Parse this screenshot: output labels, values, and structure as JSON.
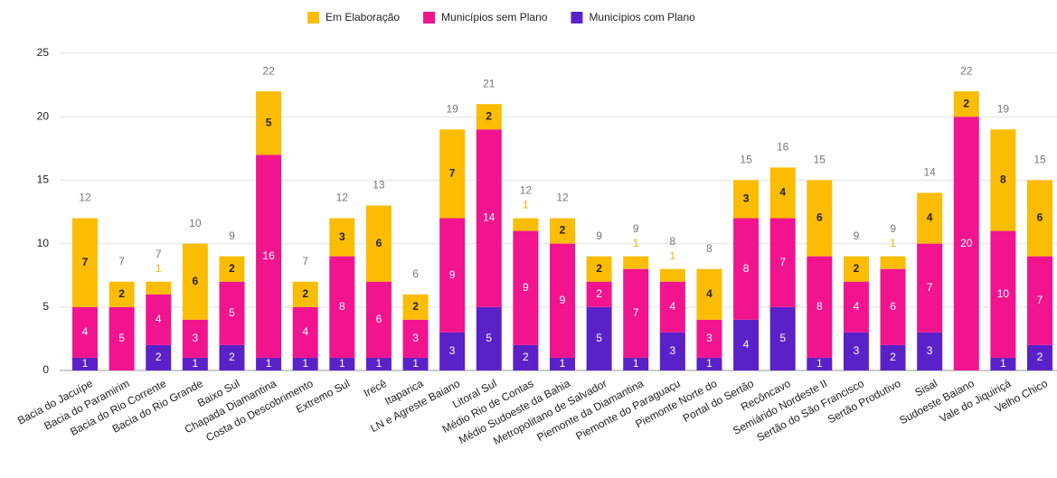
{
  "chart_data": {
    "type": "stacked_bar",
    "categories": [
      "Bacia do Jacuípe",
      "Bacia do Paramirim",
      "Bacia do Rio Corrente",
      "Bacia do Rio Grande",
      "Baixo Sul",
      "Chapada Diamantina",
      "Costa do Descobrimento",
      "Extremo Sul",
      "Irecê",
      "Itaparica",
      "LN e Agreste Baiano",
      "Litoral Sul",
      "Médio Rio de Contas",
      "Médio Sudoeste da Bahia",
      "Metropolitano de Salvador",
      "Piemonte da Diamantina",
      "Piemonte do Paraguaçu",
      "Piemonte Norte do",
      "Portal do Sertão",
      "Recôncavo",
      "Semiárido Nordeste II",
      "Sertão do São Francisco",
      "Sertão Produtivo",
      "Sisal",
      "Sudoeste Baiano",
      "Vale do Jiquiriçá",
      "Velho Chico"
    ],
    "series": [
      {
        "name": "Em Elaboração",
        "color": "#fbbc04",
        "values": [
          7,
          2,
          1,
          6,
          2,
          5,
          2,
          3,
          6,
          2,
          7,
          2,
          1,
          2,
          2,
          1,
          1,
          4,
          3,
          4,
          6,
          2,
          1,
          4,
          2,
          8,
          6
        ]
      },
      {
        "name": "Municípios sem Plano",
        "color": "#f2148f",
        "values": [
          4,
          5,
          4,
          3,
          5,
          16,
          4,
          8,
          6,
          3,
          9,
          14,
          9,
          9,
          2,
          7,
          4,
          3,
          8,
          7,
          8,
          4,
          6,
          7,
          20,
          10,
          7
        ]
      },
      {
        "name": "Municípios com Plano",
        "color": "#5b21c9",
        "values": [
          1,
          null,
          2,
          1,
          2,
          1,
          1,
          1,
          1,
          1,
          3,
          5,
          2,
          1,
          5,
          1,
          3,
          1,
          4,
          5,
          1,
          3,
          2,
          3,
          0,
          1,
          2
        ]
      }
    ],
    "totals": [
      12,
      7,
      7,
      10,
      9,
      22,
      7,
      12,
      13,
      6,
      19,
      21,
      12,
      12,
      9,
      9,
      8,
      8,
      15,
      16,
      15,
      9,
      9,
      14,
      22,
      19,
      15
    ],
    "ylim": [
      0,
      25
    ],
    "yticks": [
      0,
      5,
      10,
      15,
      20,
      25
    ],
    "grid": true,
    "legend": "top"
  }
}
